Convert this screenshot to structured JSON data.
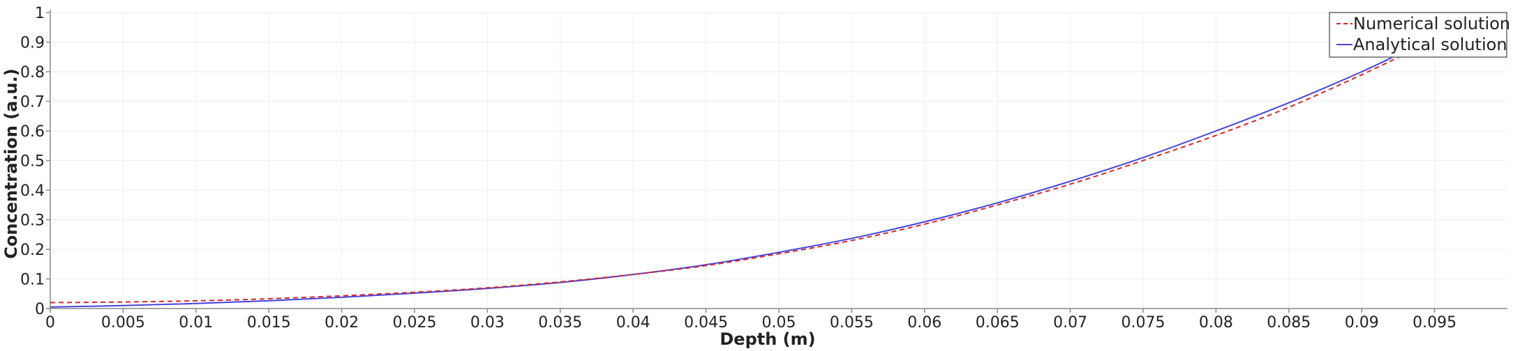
{
  "chart_data": {
    "type": "line",
    "xlabel": "Depth (m)",
    "ylabel": "Concentration (a.u.)",
    "xlim": [
      0,
      0.1
    ],
    "ylim": [
      0,
      1
    ],
    "x_ticks": [
      "0",
      "0.005",
      "0.01",
      "0.015",
      "0.02",
      "0.025",
      "0.03",
      "0.035",
      "0.04",
      "0.045",
      "0.05",
      "0.055",
      "0.06",
      "0.065",
      "0.07",
      "0.075",
      "0.08",
      "0.085",
      "0.09",
      "0.095"
    ],
    "y_ticks": [
      "0",
      "0.1",
      "0.2",
      "0.3",
      "0.4",
      "0.5",
      "0.6",
      "0.7",
      "0.8",
      "0.9",
      "1"
    ],
    "grid": true,
    "legend_position": "top-right",
    "series": [
      {
        "name": "Numerical solution",
        "color": "#d62728",
        "style": "dashed",
        "x": [
          0,
          0.005,
          0.01,
          0.015,
          0.02,
          0.025,
          0.03,
          0.035,
          0.04,
          0.045,
          0.05,
          0.055,
          0.06,
          0.065,
          0.07,
          0.075,
          0.08,
          0.085,
          0.09,
          0.093
        ],
        "y": [
          0.02,
          0.022,
          0.026,
          0.033,
          0.043,
          0.055,
          0.07,
          0.09,
          0.115,
          0.145,
          0.185,
          0.23,
          0.285,
          0.35,
          0.42,
          0.5,
          0.585,
          0.68,
          0.79,
          0.86
        ]
      },
      {
        "name": "Analytical solution",
        "color": "#4444dd",
        "style": "solid",
        "x": [
          0,
          0.005,
          0.01,
          0.015,
          0.02,
          0.025,
          0.03,
          0.035,
          0.04,
          0.045,
          0.05,
          0.055,
          0.06,
          0.065,
          0.07,
          0.075,
          0.08,
          0.085,
          0.09,
          0.093
        ],
        "y": [
          0.005,
          0.01,
          0.017,
          0.026,
          0.038,
          0.052,
          0.068,
          0.088,
          0.115,
          0.148,
          0.19,
          0.237,
          0.293,
          0.357,
          0.43,
          0.51,
          0.6,
          0.695,
          0.8,
          0.87
        ]
      }
    ]
  }
}
